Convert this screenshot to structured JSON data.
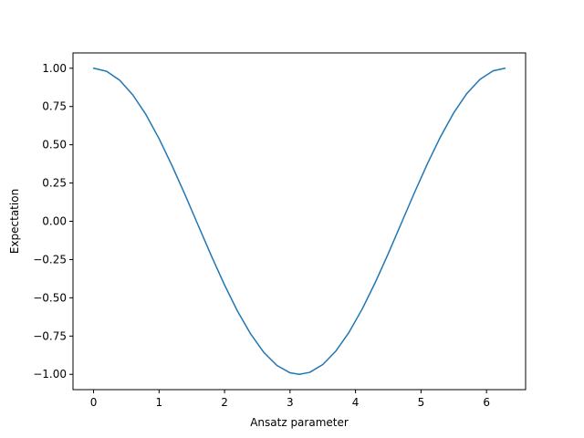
{
  "chart_data": {
    "type": "line",
    "title": "",
    "xlabel": "Ansatz parameter",
    "ylabel": "Expectation",
    "xlim": [
      -0.314,
      6.597
    ],
    "ylim": [
      -1.1,
      1.1
    ],
    "xticks": [
      0,
      1,
      2,
      3,
      4,
      5,
      6
    ],
    "xtick_labels": [
      "0",
      "1",
      "2",
      "3",
      "4",
      "5",
      "6"
    ],
    "yticks": [
      -1.0,
      -0.75,
      -0.5,
      -0.25,
      0.0,
      0.25,
      0.5,
      0.75,
      1.0
    ],
    "ytick_labels": [
      "−1.00",
      "−0.75",
      "−0.50",
      "−0.25",
      "0.00",
      "0.25",
      "0.50",
      "0.75",
      "1.00"
    ],
    "grid": false,
    "legend": "none",
    "series": [
      {
        "color": "#1f77b4",
        "x": [
          0.0,
          0.2,
          0.4,
          0.6,
          0.8,
          1.0,
          1.2,
          1.4,
          1.6,
          1.8,
          2.0,
          2.2,
          2.4,
          2.6,
          2.8,
          3.0,
          3.1416,
          3.3,
          3.5,
          3.7,
          3.9,
          4.1,
          4.3,
          4.5,
          4.7,
          4.9,
          5.1,
          5.3,
          5.5,
          5.7,
          5.9,
          6.1,
          6.2832
        ],
        "y": [
          1.0,
          0.98,
          0.921,
          0.825,
          0.697,
          0.54,
          0.362,
          0.17,
          -0.029,
          -0.227,
          -0.416,
          -0.589,
          -0.737,
          -0.857,
          -0.942,
          -0.99,
          -1.0,
          -0.987,
          -0.936,
          -0.848,
          -0.726,
          -0.575,
          -0.401,
          -0.211,
          -0.012,
          0.187,
          0.378,
          0.554,
          0.709,
          0.835,
          0.927,
          0.983,
          1.0
        ]
      }
    ]
  }
}
